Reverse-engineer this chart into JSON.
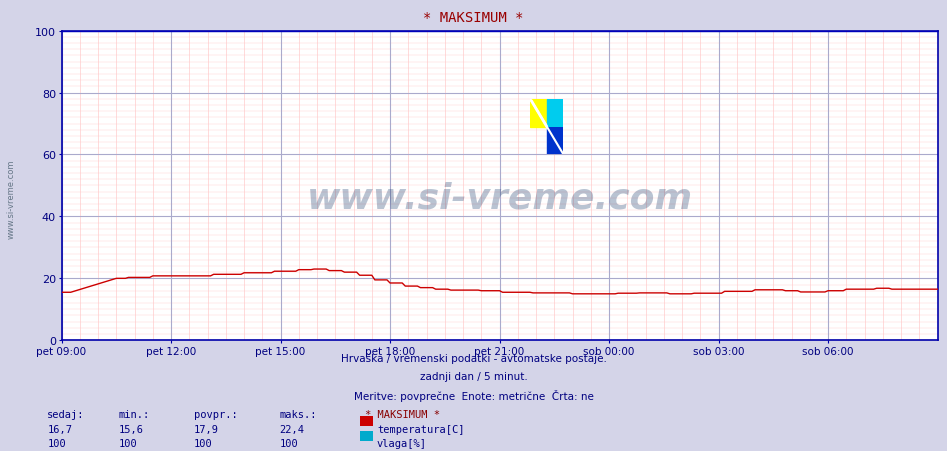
{
  "title": "* MAKSIMUM *",
  "title_color": "#990000",
  "bg_color": "#d4d4e8",
  "plot_bg_color": "#ffffff",
  "xlim": [
    0,
    288
  ],
  "ylim": [
    0,
    100
  ],
  "yticks": [
    0,
    20,
    40,
    60,
    80,
    100
  ],
  "xtick_labels": [
    "pet 09:00",
    "pet 12:00",
    "pet 15:00",
    "pet 18:00",
    "pet 21:00",
    "sob 00:00",
    "sob 03:00",
    "sob 06:00"
  ],
  "xtick_positions": [
    0,
    36,
    72,
    108,
    144,
    180,
    216,
    252
  ],
  "temp_color": "#cc0000",
  "humidity_color": "#0000bb",
  "watermark_text": "www.si-vreme.com",
  "watermark_color": "#1a3a6a",
  "watermark_alpha": 0.3,
  "subtitle1": "Hrvaška / vremenski podatki - avtomatske postaje.",
  "subtitle2": "zadnji dan / 5 minut.",
  "subtitle3": "Meritve: povprečne  Enote: metrične  Črta: ne",
  "subtitle_color": "#000080",
  "left_label": "www.si-vreme.com",
  "left_label_color": "#667788",
  "legend_title": "* MAKSIMUM *",
  "legend_items": [
    "temperatura[C]",
    "vlaga[%]"
  ],
  "legend_colors": [
    "#cc0000",
    "#00aacc"
  ],
  "stats_headers": [
    "sedaj:",
    "min.:",
    "povpr.:",
    "maks.:"
  ],
  "stats_temp": [
    "16,7",
    "15,6",
    "17,9",
    "22,4"
  ],
  "stats_hum": [
    "100",
    "100",
    "100",
    "100"
  ],
  "stats_color": "#000080",
  "major_grid_color": "#aaaacc",
  "minor_grid_color": "#ffcccc",
  "spine_color": "#0000aa",
  "tick_color": "#000080"
}
